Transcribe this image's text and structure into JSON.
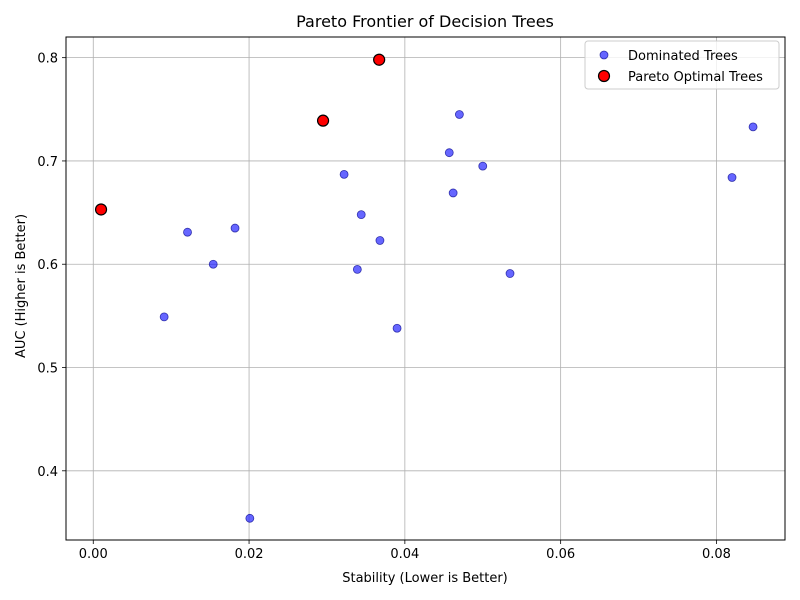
{
  "chart_data": {
    "type": "scatter",
    "title": "Pareto Frontier of Decision Trees",
    "xlabel": "Stability (Lower is Better)",
    "ylabel": "AUC (Higher is Better)",
    "xlim": [
      -0.0035,
      0.0888
    ],
    "ylim": [
      0.333,
      0.82
    ],
    "xticks": [
      0.0,
      0.02,
      0.04,
      0.06,
      0.08
    ],
    "xtick_labels": [
      "0.00",
      "0.02",
      "0.04",
      "0.06",
      "0.08"
    ],
    "yticks": [
      0.4,
      0.5,
      0.6,
      0.7,
      0.8
    ],
    "ytick_labels": [
      "0.4",
      "0.5",
      "0.6",
      "0.7",
      "0.8"
    ],
    "grid": true,
    "legend_position": "top-right",
    "series": [
      {
        "name": "Dominated Trees",
        "color": "#0000ff",
        "points": [
          {
            "x": 0.0091,
            "y": 0.549
          },
          {
            "x": 0.0121,
            "y": 0.631
          },
          {
            "x": 0.0154,
            "y": 0.6
          },
          {
            "x": 0.0182,
            "y": 0.635
          },
          {
            "x": 0.0201,
            "y": 0.354
          },
          {
            "x": 0.0322,
            "y": 0.687
          },
          {
            "x": 0.0339,
            "y": 0.595
          },
          {
            "x": 0.0344,
            "y": 0.648
          },
          {
            "x": 0.0368,
            "y": 0.623
          },
          {
            "x": 0.039,
            "y": 0.538
          },
          {
            "x": 0.0457,
            "y": 0.708
          },
          {
            "x": 0.0462,
            "y": 0.669
          },
          {
            "x": 0.047,
            "y": 0.745
          },
          {
            "x": 0.05,
            "y": 0.695
          },
          {
            "x": 0.0535,
            "y": 0.591
          },
          {
            "x": 0.082,
            "y": 0.684
          },
          {
            "x": 0.0847,
            "y": 0.733
          }
        ]
      },
      {
        "name": "Pareto Optimal Trees",
        "color": "#ff0000",
        "points": [
          {
            "x": 0.001,
            "y": 0.653
          },
          {
            "x": 0.0295,
            "y": 0.739
          },
          {
            "x": 0.0367,
            "y": 0.798
          }
        ]
      }
    ]
  }
}
